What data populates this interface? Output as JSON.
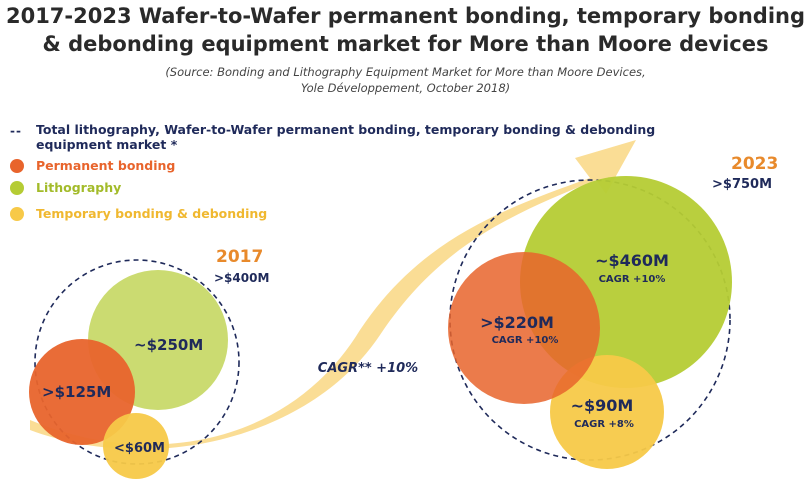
{
  "title": {
    "line1": "2017-2023 Wafer-to-Wafer permanent bonding, temporary bonding",
    "line2": "& debonding equipment market for More than Moore devices"
  },
  "source": {
    "line1": "(Source: Bonding and Lithography Equipment Market for More than Moore Devices,",
    "line2": "Yole Développement, October 2018)"
  },
  "legend": {
    "total_line1": "Total lithography, Wafer-to-Wafer permanent bonding, temporary bonding & debonding",
    "total_line2": "equipment market *",
    "items": [
      {
        "label": "Permanent bonding",
        "color": "#e8642c"
      },
      {
        "label": "Lithography",
        "color": "#b5cc34"
      },
      {
        "label": "Temporary bonding & debonding",
        "color": "#f7c948"
      }
    ]
  },
  "arrow_label": "CAGR** +10%",
  "years": [
    {
      "year": "2017",
      "total": ">$400M",
      "year_color": "#e88a2c",
      "total_color": "#1f2a5a"
    },
    {
      "year": "2023",
      "total": ">$750M",
      "year_color": "#e88a2c",
      "total_color": "#1f2a5a"
    }
  ],
  "bubbles": {
    "y2017": {
      "lithography": {
        "value": "~$250M"
      },
      "permanent": {
        "value": ">$125M"
      },
      "temporary": {
        "value": "<$60M"
      }
    },
    "y2023": {
      "lithography": {
        "value": "~$460M",
        "cagr": "CAGR +10%"
      },
      "permanent": {
        "value": ">$220M",
        "cagr": "CAGR +10%"
      },
      "temporary": {
        "value": "~$90M",
        "cagr": "CAGR +8%"
      }
    }
  },
  "colors": {
    "permanent": "#e8642c",
    "lithography": "#b5cc34",
    "temporary": "#f7c948",
    "arrow": "#fad98a",
    "dashed": "#1f2a5a"
  }
}
